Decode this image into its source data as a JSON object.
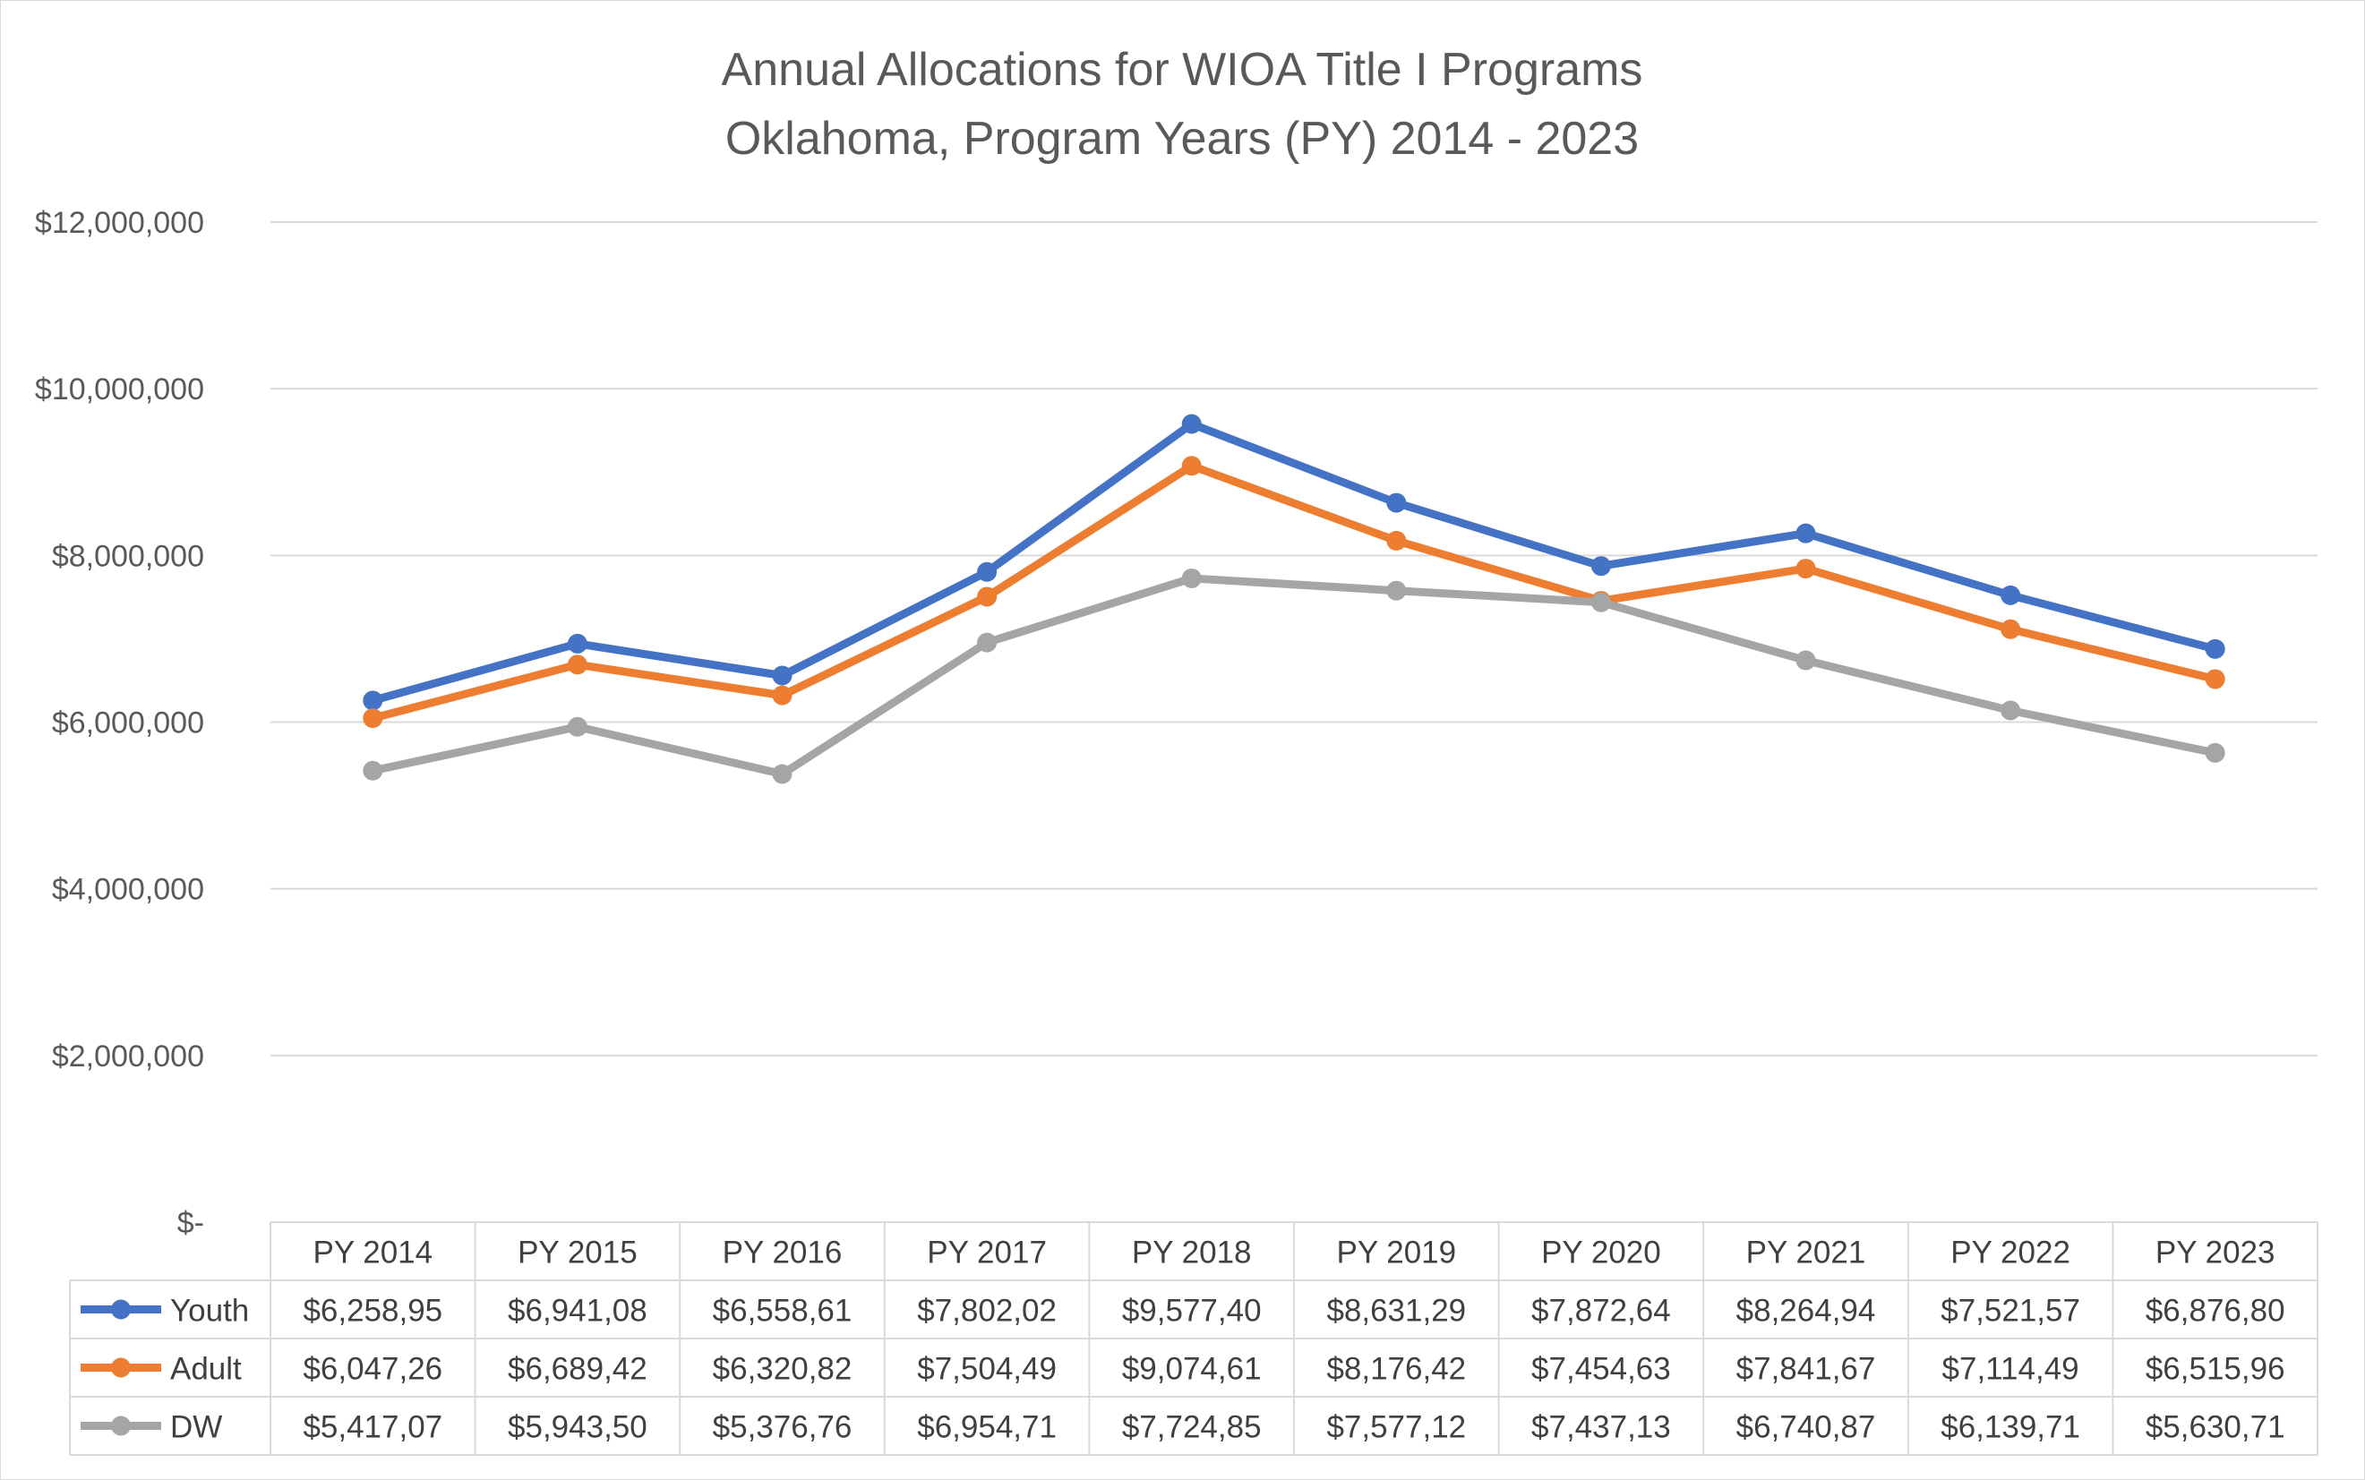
{
  "chart_data": {
    "type": "line",
    "title": "Annual Allocations for WIOA Title I Programs",
    "subtitle": "Oklahoma, Program Years (PY) 2014 - 2023",
    "categories": [
      "PY 2014",
      "PY 2015",
      "PY 2016",
      "PY 2017",
      "PY 2018",
      "PY 2019",
      "PY 2020",
      "PY 2021",
      "PY 2022",
      "PY 2023"
    ],
    "yticks": [
      "$12,000,000",
      "$10,000,000",
      "$8,000,000",
      "$6,000,000",
      "$4,000,000",
      "$2,000,000",
      "$-"
    ],
    "ylim": [
      0,
      12000000
    ],
    "grid": true,
    "legend": "data-table",
    "series": [
      {
        "name": "Youth",
        "color": "#4472C4",
        "values": [
          6258950,
          6941080,
          6558610,
          7802020,
          9577400,
          8631290,
          7872640,
          8264940,
          7521570,
          6876800
        ],
        "labels": [
          "$6,258,95",
          "$6,941,08",
          "$6,558,61",
          "$7,802,02",
          "$9,577,40",
          "$8,631,29",
          "$7,872,64",
          "$8,264,94",
          "$7,521,57",
          "$6,876,80"
        ]
      },
      {
        "name": "Adult",
        "color": "#ED7D31",
        "values": [
          6047260,
          6689420,
          6320820,
          7504490,
          9074610,
          8176420,
          7454630,
          7841670,
          7114490,
          6515960
        ],
        "labels": [
          "$6,047,26",
          "$6,689,42",
          "$6,320,82",
          "$7,504,49",
          "$9,074,61",
          "$8,176,42",
          "$7,454,63",
          "$7,841,67",
          "$7,114,49",
          "$6,515,96"
        ]
      },
      {
        "name": "DW",
        "color": "#A5A5A5",
        "values": [
          5417070,
          5943500,
          5376760,
          6954710,
          7724850,
          7577120,
          7437130,
          6740870,
          6139710,
          5630710
        ],
        "labels": [
          "$5,417,07",
          "$5,943,50",
          "$5,376,76",
          "$6,954,71",
          "$7,724,85",
          "$7,577,12",
          "$7,437,13",
          "$6,740,87",
          "$6,139,71",
          "$5,630,71"
        ]
      }
    ]
  }
}
